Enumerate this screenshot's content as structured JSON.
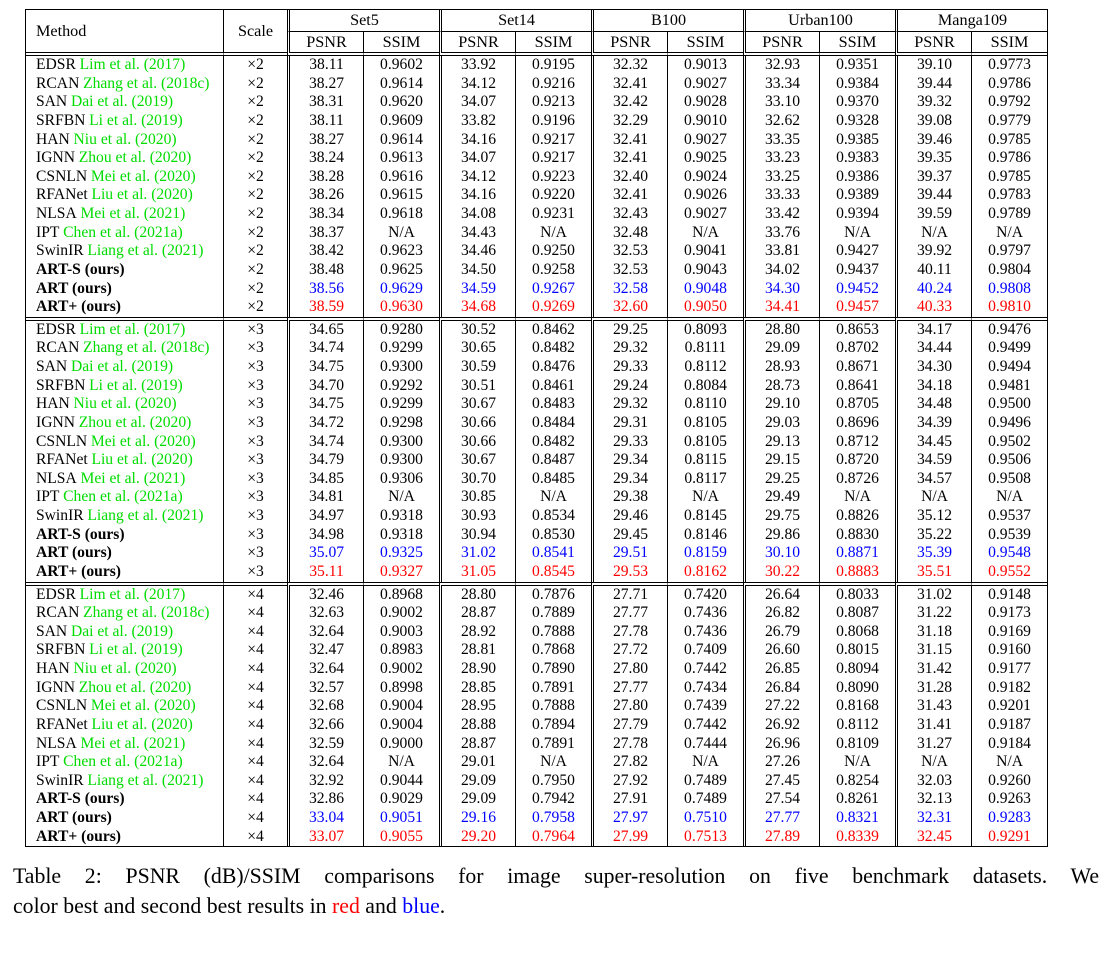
{
  "colors": {
    "citation_green": "#00dc00",
    "best_red": "#ff0000",
    "second_blue": "#0000ff",
    "text_black": "#000000"
  },
  "table": {
    "header": {
      "method_label": "Method",
      "scale_label": "Scale",
      "datasets": [
        "Set5",
        "Set14",
        "B100",
        "Urban100",
        "Manga109"
      ],
      "metrics": [
        "PSNR",
        "SSIM"
      ]
    },
    "blocks": [
      {
        "scale": "×2",
        "rows": [
          {
            "method": "EDSR",
            "citation": "Lim et al. (2017)",
            "bold": false,
            "highlight": "",
            "values": [
              "38.11",
              "0.9602",
              "33.92",
              "0.9195",
              "32.32",
              "0.9013",
              "32.93",
              "0.9351",
              "39.10",
              "0.9773"
            ]
          },
          {
            "method": "RCAN",
            "citation": "Zhang et al. (2018c)",
            "bold": false,
            "highlight": "",
            "values": [
              "38.27",
              "0.9614",
              "34.12",
              "0.9216",
              "32.41",
              "0.9027",
              "33.34",
              "0.9384",
              "39.44",
              "0.9786"
            ]
          },
          {
            "method": "SAN",
            "citation": "Dai et al. (2019)",
            "bold": false,
            "highlight": "",
            "values": [
              "38.31",
              "0.9620",
              "34.07",
              "0.9213",
              "32.42",
              "0.9028",
              "33.10",
              "0.9370",
              "39.32",
              "0.9792"
            ]
          },
          {
            "method": "SRFBN",
            "citation": "Li et al. (2019)",
            "bold": false,
            "highlight": "",
            "values": [
              "38.11",
              "0.9609",
              "33.82",
              "0.9196",
              "32.29",
              "0.9010",
              "32.62",
              "0.9328",
              "39.08",
              "0.9779"
            ]
          },
          {
            "method": "HAN",
            "citation": "Niu et al. (2020)",
            "bold": false,
            "highlight": "",
            "values": [
              "38.27",
              "0.9614",
              "34.16",
              "0.9217",
              "32.41",
              "0.9027",
              "33.35",
              "0.9385",
              "39.46",
              "0.9785"
            ]
          },
          {
            "method": "IGNN",
            "citation": "Zhou et al. (2020)",
            "bold": false,
            "highlight": "",
            "values": [
              "38.24",
              "0.9613",
              "34.07",
              "0.9217",
              "32.41",
              "0.9025",
              "33.23",
              "0.9383",
              "39.35",
              "0.9786"
            ]
          },
          {
            "method": "CSNLN",
            "citation": "Mei et al. (2020)",
            "bold": false,
            "highlight": "",
            "values": [
              "38.28",
              "0.9616",
              "34.12",
              "0.9223",
              "32.40",
              "0.9024",
              "33.25",
              "0.9386",
              "39.37",
              "0.9785"
            ]
          },
          {
            "method": "RFANet",
            "citation": "Liu et al. (2020)",
            "bold": false,
            "highlight": "",
            "values": [
              "38.26",
              "0.9615",
              "34.16",
              "0.9220",
              "32.41",
              "0.9026",
              "33.33",
              "0.9389",
              "39.44",
              "0.9783"
            ]
          },
          {
            "method": "NLSA",
            "citation": "Mei et al. (2021)",
            "bold": false,
            "highlight": "",
            "values": [
              "38.34",
              "0.9618",
              "34.08",
              "0.9231",
              "32.43",
              "0.9027",
              "33.42",
              "0.9394",
              "39.59",
              "0.9789"
            ]
          },
          {
            "method": "IPT",
            "citation": "Chen et al. (2021a)",
            "bold": false,
            "highlight": "",
            "values": [
              "38.37",
              "N/A",
              "34.43",
              "N/A",
              "32.48",
              "N/A",
              "33.76",
              "N/A",
              "N/A",
              "N/A"
            ]
          },
          {
            "method": "SwinIR",
            "citation": "Liang et al. (2021)",
            "bold": false,
            "highlight": "",
            "values": [
              "38.42",
              "0.9623",
              "34.46",
              "0.9250",
              "32.53",
              "0.9041",
              "33.81",
              "0.9427",
              "39.92",
              "0.9797"
            ]
          },
          {
            "method": "ART-S (ours)",
            "citation": "",
            "bold": true,
            "highlight": "",
            "values": [
              "38.48",
              "0.9625",
              "34.50",
              "0.9258",
              "32.53",
              "0.9043",
              "34.02",
              "0.9437",
              "40.11",
              "0.9804"
            ]
          },
          {
            "method": "ART (ours)",
            "citation": "",
            "bold": true,
            "highlight": "blue",
            "values": [
              "38.56",
              "0.9629",
              "34.59",
              "0.9267",
              "32.58",
              "0.9048",
              "34.30",
              "0.9452",
              "40.24",
              "0.9808"
            ]
          },
          {
            "method": "ART+ (ours)",
            "citation": "",
            "bold": true,
            "highlight": "red",
            "values": [
              "38.59",
              "0.9630",
              "34.68",
              "0.9269",
              "32.60",
              "0.9050",
              "34.41",
              "0.9457",
              "40.33",
              "0.9810"
            ]
          }
        ]
      },
      {
        "scale": "×3",
        "rows": [
          {
            "method": "EDSR",
            "citation": "Lim et al. (2017)",
            "bold": false,
            "highlight": "",
            "values": [
              "34.65",
              "0.9280",
              "30.52",
              "0.8462",
              "29.25",
              "0.8093",
              "28.80",
              "0.8653",
              "34.17",
              "0.9476"
            ]
          },
          {
            "method": "RCAN",
            "citation": "Zhang et al. (2018c)",
            "bold": false,
            "highlight": "",
            "values": [
              "34.74",
              "0.9299",
              "30.65",
              "0.8482",
              "29.32",
              "0.8111",
              "29.09",
              "0.8702",
              "34.44",
              "0.9499"
            ]
          },
          {
            "method": "SAN",
            "citation": "Dai et al. (2019)",
            "bold": false,
            "highlight": "",
            "values": [
              "34.75",
              "0.9300",
              "30.59",
              "0.8476",
              "29.33",
              "0.8112",
              "28.93",
              "0.8671",
              "34.30",
              "0.9494"
            ]
          },
          {
            "method": "SRFBN",
            "citation": "Li et al. (2019)",
            "bold": false,
            "highlight": "",
            "values": [
              "34.70",
              "0.9292",
              "30.51",
              "0.8461",
              "29.24",
              "0.8084",
              "28.73",
              "0.8641",
              "34.18",
              "0.9481"
            ]
          },
          {
            "method": "HAN",
            "citation": "Niu et al. (2020)",
            "bold": false,
            "highlight": "",
            "values": [
              "34.75",
              "0.9299",
              "30.67",
              "0.8483",
              "29.32",
              "0.8110",
              "29.10",
              "0.8705",
              "34.48",
              "0.9500"
            ]
          },
          {
            "method": "IGNN",
            "citation": "Zhou et al. (2020)",
            "bold": false,
            "highlight": "",
            "values": [
              "34.72",
              "0.9298",
              "30.66",
              "0.8484",
              "29.31",
              "0.8105",
              "29.03",
              "0.8696",
              "34.39",
              "0.9496"
            ]
          },
          {
            "method": "CSNLN",
            "citation": "Mei et al. (2020)",
            "bold": false,
            "highlight": "",
            "values": [
              "34.74",
              "0.9300",
              "30.66",
              "0.8482",
              "29.33",
              "0.8105",
              "29.13",
              "0.8712",
              "34.45",
              "0.9502"
            ]
          },
          {
            "method": "RFANet",
            "citation": "Liu et al. (2020)",
            "bold": false,
            "highlight": "",
            "values": [
              "34.79",
              "0.9300",
              "30.67",
              "0.8487",
              "29.34",
              "0.8115",
              "29.15",
              "0.8720",
              "34.59",
              "0.9506"
            ]
          },
          {
            "method": "NLSA",
            "citation": "Mei et al. (2021)",
            "bold": false,
            "highlight": "",
            "values": [
              "34.85",
              "0.9306",
              "30.70",
              "0.8485",
              "29.34",
              "0.8117",
              "29.25",
              "0.8726",
              "34.57",
              "0.9508"
            ]
          },
          {
            "method": "IPT",
            "citation": "Chen et al. (2021a)",
            "bold": false,
            "highlight": "",
            "values": [
              "34.81",
              "N/A",
              "30.85",
              "N/A",
              "29.38",
              "N/A",
              "29.49",
              "N/A",
              "N/A",
              "N/A"
            ]
          },
          {
            "method": "SwinIR",
            "citation": "Liang et al. (2021)",
            "bold": false,
            "highlight": "",
            "values": [
              "34.97",
              "0.9318",
              "30.93",
              "0.8534",
              "29.46",
              "0.8145",
              "29.75",
              "0.8826",
              "35.12",
              "0.9537"
            ]
          },
          {
            "method": "ART-S (ours)",
            "citation": "",
            "bold": true,
            "highlight": "",
            "values": [
              "34.98",
              "0.9318",
              "30.94",
              "0.8530",
              "29.45",
              "0.8146",
              "29.86",
              "0.8830",
              "35.22",
              "0.9539"
            ]
          },
          {
            "method": "ART (ours)",
            "citation": "",
            "bold": true,
            "highlight": "blue",
            "values": [
              "35.07",
              "0.9325",
              "31.02",
              "0.8541",
              "29.51",
              "0.8159",
              "30.10",
              "0.8871",
              "35.39",
              "0.9548"
            ]
          },
          {
            "method": "ART+ (ours)",
            "citation": "",
            "bold": true,
            "highlight": "red",
            "values": [
              "35.11",
              "0.9327",
              "31.05",
              "0.8545",
              "29.53",
              "0.8162",
              "30.22",
              "0.8883",
              "35.51",
              "0.9552"
            ]
          }
        ]
      },
      {
        "scale": "×4",
        "rows": [
          {
            "method": "EDSR",
            "citation": "Lim et al. (2017)",
            "bold": false,
            "highlight": "",
            "values": [
              "32.46",
              "0.8968",
              "28.80",
              "0.7876",
              "27.71",
              "0.7420",
              "26.64",
              "0.8033",
              "31.02",
              "0.9148"
            ]
          },
          {
            "method": "RCAN",
            "citation": "Zhang et al. (2018c)",
            "bold": false,
            "highlight": "",
            "values": [
              "32.63",
              "0.9002",
              "28.87",
              "0.7889",
              "27.77",
              "0.7436",
              "26.82",
              "0.8087",
              "31.22",
              "0.9173"
            ]
          },
          {
            "method": "SAN",
            "citation": "Dai et al. (2019)",
            "bold": false,
            "highlight": "",
            "values": [
              "32.64",
              "0.9003",
              "28.92",
              "0.7888",
              "27.78",
              "0.7436",
              "26.79",
              "0.8068",
              "31.18",
              "0.9169"
            ]
          },
          {
            "method": "SRFBN",
            "citation": "Li et al. (2019)",
            "bold": false,
            "highlight": "",
            "values": [
              "32.47",
              "0.8983",
              "28.81",
              "0.7868",
              "27.72",
              "0.7409",
              "26.60",
              "0.8015",
              "31.15",
              "0.9160"
            ]
          },
          {
            "method": "HAN",
            "citation": "Niu et al. (2020)",
            "bold": false,
            "highlight": "",
            "values": [
              "32.64",
              "0.9002",
              "28.90",
              "0.7890",
              "27.80",
              "0.7442",
              "26.85",
              "0.8094",
              "31.42",
              "0.9177"
            ]
          },
          {
            "method": "IGNN",
            "citation": "Zhou et al. (2020)",
            "bold": false,
            "highlight": "",
            "values": [
              "32.57",
              "0.8998",
              "28.85",
              "0.7891",
              "27.77",
              "0.7434",
              "26.84",
              "0.8090",
              "31.28",
              "0.9182"
            ]
          },
          {
            "method": "CSNLN",
            "citation": "Mei et al. (2020)",
            "bold": false,
            "highlight": "",
            "values": [
              "32.68",
              "0.9004",
              "28.95",
              "0.7888",
              "27.80",
              "0.7439",
              "27.22",
              "0.8168",
              "31.43",
              "0.9201"
            ]
          },
          {
            "method": "RFANet",
            "citation": "Liu et al. (2020)",
            "bold": false,
            "highlight": "",
            "values": [
              "32.66",
              "0.9004",
              "28.88",
              "0.7894",
              "27.79",
              "0.7442",
              "26.92",
              "0.8112",
              "31.41",
              "0.9187"
            ]
          },
          {
            "method": "NLSA",
            "citation": "Mei et al. (2021)",
            "bold": false,
            "highlight": "",
            "values": [
              "32.59",
              "0.9000",
              "28.87",
              "0.7891",
              "27.78",
              "0.7444",
              "26.96",
              "0.8109",
              "31.27",
              "0.9184"
            ]
          },
          {
            "method": "IPT",
            "citation": "Chen et al. (2021a)",
            "bold": false,
            "highlight": "",
            "values": [
              "32.64",
              "N/A",
              "29.01",
              "N/A",
              "27.82",
              "N/A",
              "27.26",
              "N/A",
              "N/A",
              "N/A"
            ]
          },
          {
            "method": "SwinIR",
            "citation": "Liang et al. (2021)",
            "bold": false,
            "highlight": "",
            "values": [
              "32.92",
              "0.9044",
              "29.09",
              "0.7950",
              "27.92",
              "0.7489",
              "27.45",
              "0.8254",
              "32.03",
              "0.9260"
            ]
          },
          {
            "method": "ART-S (ours)",
            "citation": "",
            "bold": true,
            "highlight": "",
            "values": [
              "32.86",
              "0.9029",
              "29.09",
              "0.7942",
              "27.91",
              "0.7489",
              "27.54",
              "0.8261",
              "32.13",
              "0.9263"
            ]
          },
          {
            "method": "ART (ours)",
            "citation": "",
            "bold": true,
            "highlight": "blue",
            "values": [
              "33.04",
              "0.9051",
              "29.16",
              "0.7958",
              "27.97",
              "0.7510",
              "27.77",
              "0.8321",
              "32.31",
              "0.9283"
            ]
          },
          {
            "method": "ART+ (ours)",
            "citation": "",
            "bold": true,
            "highlight": "red",
            "values": [
              "33.07",
              "0.9055",
              "29.20",
              "0.7964",
              "27.99",
              "0.7513",
              "27.89",
              "0.8339",
              "32.45",
              "0.9291"
            ]
          }
        ]
      }
    ]
  },
  "caption": {
    "line1": "Table 2: PSNR (dB)/SSIM comparisons for image super-resolution on five benchmark datasets. We",
    "line2_parts": [
      {
        "text": "color best and second best results in ",
        "color": ""
      },
      {
        "text": "red",
        "color": "#ff0000"
      },
      {
        "text": " and ",
        "color": ""
      },
      {
        "text": "blue",
        "color": "#0000ff"
      },
      {
        "text": ".",
        "color": ""
      }
    ]
  }
}
